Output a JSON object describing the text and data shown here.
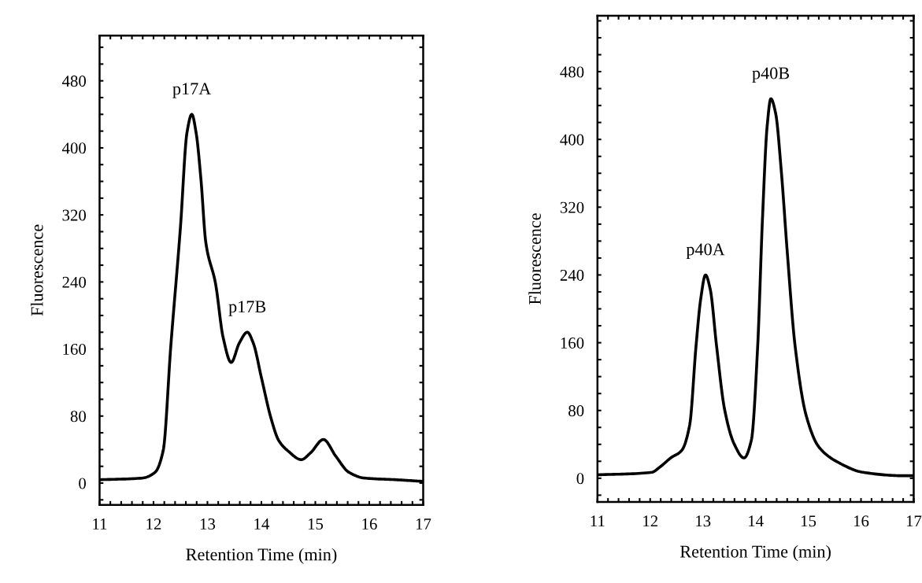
{
  "chart_data": [
    {
      "type": "line",
      "xlabel": "Retention Time (min)",
      "ylabel": "Fluorescence",
      "xlim": [
        11,
        17
      ],
      "ylim": [
        -26,
        534
      ],
      "xticks": [
        11,
        {
          "value": 11.2,
          "label": null
        },
        {
          "value": 11.4,
          "label": null
        },
        {
          "value": 11.6,
          "label": null
        },
        {
          "value": 11.8,
          "label": null
        },
        12,
        {
          "value": 12.2,
          "label": null
        },
        {
          "value": 12.4,
          "label": null
        },
        {
          "value": 12.6,
          "label": null
        },
        {
          "value": 12.8,
          "label": null
        },
        13,
        {
          "value": 13.2,
          "label": null
        },
        {
          "value": 13.4,
          "label": null
        },
        {
          "value": 13.6,
          "label": null
        },
        {
          "value": 13.8,
          "label": null
        },
        14,
        {
          "value": 14.2,
          "label": null
        },
        {
          "value": 14.4,
          "label": null
        },
        {
          "value": 14.6,
          "label": null
        },
        {
          "value": 14.8,
          "label": null
        },
        15,
        {
          "value": 15.2,
          "label": null
        },
        {
          "value": 15.4,
          "label": null
        },
        {
          "value": 15.6,
          "label": null
        },
        {
          "value": 15.8,
          "label": null
        },
        16,
        {
          "value": 16.2,
          "label": null
        },
        {
          "value": 16.4,
          "label": null
        },
        {
          "value": 16.6,
          "label": null
        },
        {
          "value": 16.8,
          "label": null
        },
        17
      ],
      "yticks": [
        {
          "value": -20,
          "label": null
        },
        0,
        {
          "value": 20,
          "label": null
        },
        {
          "value": 40,
          "label": null
        },
        {
          "value": 60,
          "label": null
        },
        80,
        {
          "value": 100,
          "label": null
        },
        {
          "value": 120,
          "label": null
        },
        {
          "value": 140,
          "label": null
        },
        160,
        {
          "value": 180,
          "label": null
        },
        {
          "value": 200,
          "label": null
        },
        {
          "value": 220,
          "label": null
        },
        240,
        {
          "value": 260,
          "label": null
        },
        {
          "value": 280,
          "label": null
        },
        {
          "value": 300,
          "label": null
        },
        320,
        {
          "value": 340,
          "label": null
        },
        {
          "value": 360,
          "label": null
        },
        {
          "value": 380,
          "label": null
        },
        400,
        {
          "value": 420,
          "label": null
        },
        {
          "value": 440,
          "label": null
        },
        {
          "value": 460,
          "label": null
        },
        480,
        {
          "value": 500,
          "label": null
        },
        {
          "value": 520,
          "label": null
        }
      ],
      "grid": false,
      "legend": false,
      "marker": "none",
      "line_style": "solid",
      "series": [
        {
          "color": "#000000",
          "x": [
            11,
            11.79,
            12.03,
            12.18,
            12.32,
            12.5,
            12.62,
            12.71,
            12.79,
            12.88,
            12.97,
            13.15,
            13.29,
            13.44,
            13.59,
            13.74,
            13.85,
            14.0,
            14.18,
            14.32,
            14.5,
            14.74,
            14.91,
            15.15,
            15.38,
            15.62,
            15.91,
            16.5,
            17.0
          ],
          "values": [
            4,
            6,
            13,
            39,
            163,
            306,
            418,
            440,
            418,
            362,
            287,
            238,
            174,
            144,
            167,
            180,
            167,
            126,
            77,
            51,
            38,
            28,
            36,
            52,
            32,
            13,
            6,
            4,
            2
          ]
        }
      ],
      "annotations": [
        {
          "text": "p17A",
          "x": 12.71,
          "y": 440
        },
        {
          "text": "p17B",
          "x": 13.74,
          "y": 180
        }
      ]
    },
    {
      "type": "line",
      "xlabel": "Retention Time (min)",
      "ylabel": "Fluorescence",
      "xlim": [
        11,
        17
      ],
      "ylim": [
        -28,
        546
      ],
      "xticks": [
        11,
        {
          "value": 11.2,
          "label": null
        },
        {
          "value": 11.4,
          "label": null
        },
        {
          "value": 11.6,
          "label": null
        },
        {
          "value": 11.8,
          "label": null
        },
        12,
        {
          "value": 12.2,
          "label": null
        },
        {
          "value": 12.4,
          "label": null
        },
        {
          "value": 12.6,
          "label": null
        },
        {
          "value": 12.8,
          "label": null
        },
        13,
        {
          "value": 13.2,
          "label": null
        },
        {
          "value": 13.4,
          "label": null
        },
        {
          "value": 13.6,
          "label": null
        },
        {
          "value": 13.8,
          "label": null
        },
        14,
        {
          "value": 14.2,
          "label": null
        },
        {
          "value": 14.4,
          "label": null
        },
        {
          "value": 14.6,
          "label": null
        },
        {
          "value": 14.8,
          "label": null
        },
        15,
        {
          "value": 15.2,
          "label": null
        },
        {
          "value": 15.4,
          "label": null
        },
        {
          "value": 15.6,
          "label": null
        },
        {
          "value": 15.8,
          "label": null
        },
        16,
        {
          "value": 16.2,
          "label": null
        },
        {
          "value": 16.4,
          "label": null
        },
        {
          "value": 16.6,
          "label": null
        },
        {
          "value": 16.8,
          "label": null
        },
        17
      ],
      "yticks": [
        {
          "value": -20,
          "label": null
        },
        0,
        {
          "value": 20,
          "label": null
        },
        {
          "value": 40,
          "label": null
        },
        {
          "value": 60,
          "label": null
        },
        80,
        {
          "value": 100,
          "label": null
        },
        {
          "value": 120,
          "label": null
        },
        {
          "value": 140,
          "label": null
        },
        160,
        {
          "value": 180,
          "label": null
        },
        {
          "value": 200,
          "label": null
        },
        {
          "value": 220,
          "label": null
        },
        240,
        {
          "value": 260,
          "label": null
        },
        {
          "value": 280,
          "label": null
        },
        {
          "value": 300,
          "label": null
        },
        320,
        {
          "value": 340,
          "label": null
        },
        {
          "value": 360,
          "label": null
        },
        {
          "value": 380,
          "label": null
        },
        400,
        {
          "value": 420,
          "label": null
        },
        {
          "value": 440,
          "label": null
        },
        {
          "value": 460,
          "label": null
        },
        480,
        {
          "value": 500,
          "label": null
        },
        {
          "value": 520,
          "label": null
        },
        {
          "value": 540,
          "label": null
        }
      ],
      "grid": false,
      "legend": false,
      "marker": "none",
      "line_style": "solid",
      "series": [
        {
          "color": "#000000",
          "x": [
            11.0,
            12.03,
            12.18,
            12.39,
            12.6,
            12.75,
            12.87,
            12.96,
            13.05,
            13.14,
            13.26,
            13.41,
            13.59,
            13.78,
            13.92,
            14.04,
            14.13,
            14.22,
            14.29,
            14.38,
            14.49,
            14.6,
            14.75,
            14.96,
            15.2,
            15.56,
            16.04,
            16.78,
            17.0
          ],
          "values": [
            4,
            7,
            13,
            24,
            33,
            63,
            156,
            212,
            240,
            223,
            156,
            82,
            41,
            24,
            45,
            156,
            305,
            416,
            448,
            431,
            361,
            268,
            156,
            74,
            37,
            19,
            7,
            3,
            3
          ]
        }
      ],
      "annotations": [
        {
          "text": "p40A",
          "x": 13.05,
          "y": 240
        },
        {
          "text": "p40B",
          "x": 14.29,
          "y": 448
        }
      ]
    }
  ]
}
